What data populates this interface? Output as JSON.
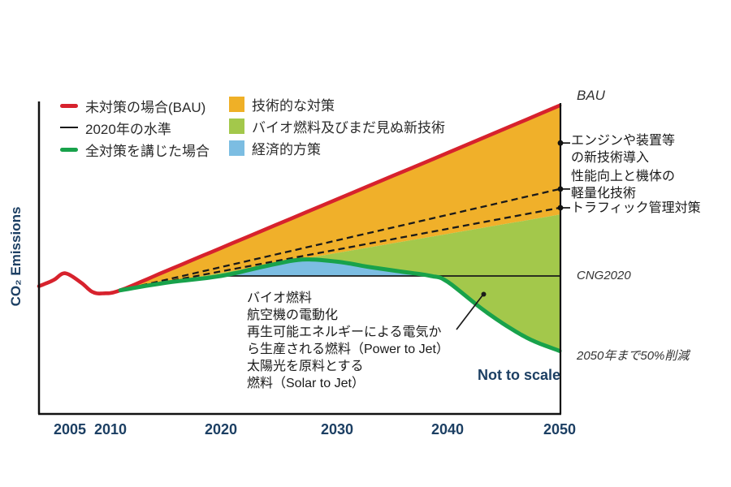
{
  "chart": {
    "ylabel": "CO₂ Emissions",
    "note": "Not to scale",
    "callout": {
      "text": "バイオ燃料\n航空機の電動化\n再生可能エネルギーによる電気か\nら生産される燃料（Power to Jet）\n太陽光を原料とする\n燃料（Solar to Jet）"
    },
    "right_annotations": {
      "bau": "BAU",
      "cng2020": "CNG2020",
      "reduction_2050": "2050年まで50%削減",
      "wedge_labels": [
        {
          "label": "エンジンや装置等\nの新技術導入",
          "marker_value": 89
        },
        {
          "label": "性能向上と機体の\n軽量化技術",
          "marker_value": 75.5
        },
        {
          "label": "トラフィック管理対策",
          "marker_value": 70
        }
      ]
    }
  },
  "legend": {
    "col1": [
      {
        "label": "未対策の場合(BAU)",
        "swatch": "line-red"
      },
      {
        "label": "2020年の水準",
        "swatch": "line-black"
      },
      {
        "label": "全対策を講じた場合",
        "swatch": "line-green"
      }
    ],
    "col2": [
      {
        "label": "技術的な対策",
        "swatch": "sq-orange"
      },
      {
        "label": "バイオ燃料及びまだ見ぬ新技術",
        "swatch": "sq-green"
      },
      {
        "label": "経済的方策",
        "swatch": "sq-blue"
      }
    ]
  },
  "colors": {
    "bau_line": "#d7222d",
    "all_measures_line": "#18a24b",
    "tech_area": "#f0b02a",
    "bio_area": "#a3c84b",
    "economic_area": "#7cbde2",
    "level_line": "#1a1a1a",
    "axis_text": "#1c3f63"
  },
  "chart_data": {
    "type": "area",
    "title": "",
    "ylabel": "CO₂ Emissions",
    "x_ticks": [
      2005,
      2010,
      2020,
      2030,
      2040,
      2050
    ],
    "y_scale_note": "相対値 (Not to scale): 2020年の水準(CNG2020)=50, 2050年BAU=100, 2050年全対策=28 (2050年まで50%削減)",
    "series": [
      {
        "id": "bau",
        "name": "未対策の場合(BAU)",
        "style": "line",
        "color": "#d7222d",
        "points": [
          [
            2001.2,
            47
          ],
          [
            2003,
            48.8
          ],
          [
            2004.4,
            50.8
          ],
          [
            2006.3,
            48.2
          ],
          [
            2007.8,
            45.3
          ],
          [
            2009.2,
            44.9
          ],
          [
            2010.9,
            45.8
          ],
          [
            2015,
            51.4
          ],
          [
            2020,
            58.2
          ],
          [
            2030,
            72.5
          ],
          [
            2040,
            86.1
          ],
          [
            2050,
            100
          ]
        ]
      },
      {
        "id": "tech1",
        "name": "エンジンや装置等の新技術導入の下限(破線)",
        "style": "dashed",
        "color": "#1a1a1a",
        "points": [
          [
            2010.9,
            45.8
          ],
          [
            2050,
            75.5
          ]
        ]
      },
      {
        "id": "tech2",
        "name": "性能向上と機体の軽量化技術の下限(破線)",
        "style": "dashed",
        "color": "#1a1a1a",
        "points": [
          [
            2010.9,
            45.8
          ],
          [
            2050,
            70
          ]
        ]
      },
      {
        "id": "techall",
        "name": "技術的な対策の下限",
        "style": "boundary",
        "color": null,
        "points": [
          [
            2010.9,
            45.8
          ],
          [
            2050,
            68
          ]
        ]
      },
      {
        "id": "all",
        "name": "全対策を講じた場合",
        "style": "line",
        "color": "#18a24b",
        "points": [
          [
            2010.9,
            45.8
          ],
          [
            2015,
            48
          ],
          [
            2020,
            50
          ],
          [
            2024,
            53
          ],
          [
            2027,
            54.8
          ],
          [
            2030,
            54.2
          ],
          [
            2033,
            52.6
          ],
          [
            2036,
            51.2
          ],
          [
            2038.5,
            50
          ],
          [
            2040,
            48.3
          ],
          [
            2043.5,
            39.3
          ],
          [
            2047,
            32
          ],
          [
            2050,
            28
          ]
        ]
      },
      {
        "id": "cng",
        "name": "2020年の水準(CNG2020)",
        "style": "hline",
        "color": "#1a1a1a",
        "points": [
          [
            2020,
            50
          ],
          [
            2050,
            50
          ]
        ]
      }
    ],
    "areas": [
      {
        "name": "技術的な対策",
        "color": "#f0b02a",
        "top": "bau",
        "bottom": "techall",
        "range": [
          2010.9,
          2050
        ]
      },
      {
        "name": "バイオ燃料及びまだ見ぬ新技術",
        "color": "#a3c84b",
        "top": "techall",
        "bottom": "all",
        "range": [
          2010.9,
          2050
        ]
      },
      {
        "name": "経済的方策",
        "color": "#7cbde2",
        "top": "all",
        "bottom": "cng",
        "range": [
          2020,
          2038.5
        ]
      }
    ]
  }
}
